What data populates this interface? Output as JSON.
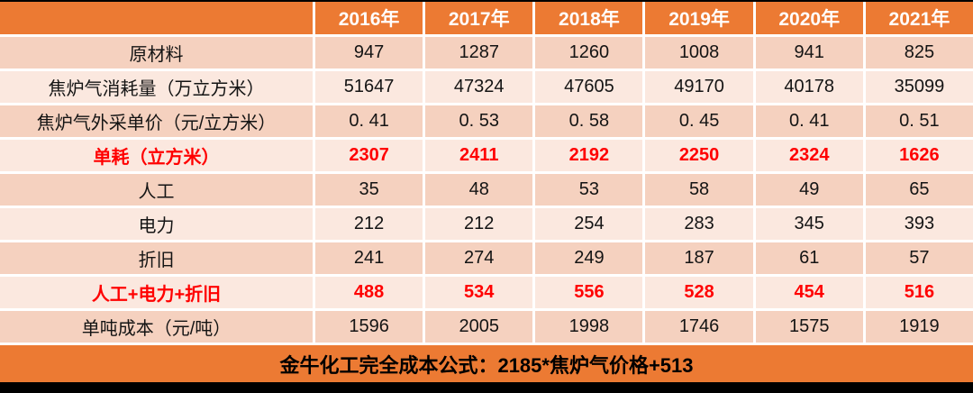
{
  "colors": {
    "accent_orange": "#EC7A33",
    "band_dark": "#F5D1BF",
    "band_light": "#FBE8DF",
    "highlight_red": "#FF0000",
    "gridline_white": "#FFFFFF",
    "frame_black": "#000000"
  },
  "chart_data": {
    "type": "table",
    "columns": [
      "",
      "2016年",
      "2017年",
      "2018年",
      "2019年",
      "2020年",
      "2021年"
    ],
    "rows": [
      {
        "label": "原材料",
        "values": [
          "947",
          "1287",
          "1260",
          "1008",
          "941",
          "825"
        ],
        "highlight": false
      },
      {
        "label": "焦炉气消耗量（万立方米）",
        "values": [
          "51647",
          "47324",
          "47605",
          "49170",
          "40178",
          "35099"
        ],
        "highlight": false
      },
      {
        "label": "焦炉气外采单价（元/立方米）",
        "values": [
          "0. 41",
          "0. 53",
          "0. 58",
          "0. 45",
          "0. 41",
          "0. 51"
        ],
        "highlight": false
      },
      {
        "label": "单耗（立方米）",
        "values": [
          "2307",
          "2411",
          "2192",
          "2250",
          "2324",
          "1626"
        ],
        "highlight": true
      },
      {
        "label": "人工",
        "values": [
          "35",
          "48",
          "53",
          "58",
          "49",
          "65"
        ],
        "highlight": false
      },
      {
        "label": "电力",
        "values": [
          "212",
          "212",
          "254",
          "283",
          "345",
          "393"
        ],
        "highlight": false
      },
      {
        "label": "折旧",
        "values": [
          "241",
          "274",
          "249",
          "187",
          "61",
          "57"
        ],
        "highlight": false
      },
      {
        "label": "人工+电力+折旧",
        "values": [
          "488",
          "534",
          "556",
          "528",
          "454",
          "516"
        ],
        "highlight": true
      },
      {
        "label": "单吨成本（元/吨）",
        "values": [
          "1596",
          "2005",
          "1998",
          "1746",
          "1575",
          "1919"
        ],
        "highlight": false
      }
    ],
    "footer_note": "金牛化工完全成本公式：2185*焦炉气价格+513"
  }
}
